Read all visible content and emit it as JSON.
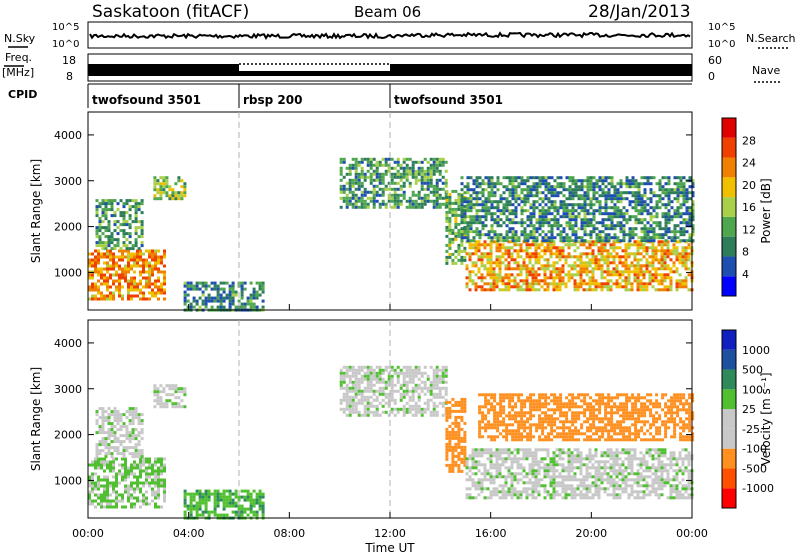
{
  "header": {
    "station": "Saskatoon (fitACF)",
    "beam": "Beam 06",
    "date": "28/Jan/2013"
  },
  "noise_panel": {
    "left_label": "N.Sky",
    "right_label": "N.Search",
    "left_ticks": [
      "10^5",
      "10^0"
    ],
    "right_ticks": [
      "10^5",
      "10^0"
    ]
  },
  "freq_panel": {
    "left_label_top": "Freq.",
    "left_label_bottom": "[MHz]",
    "left_ticks": [
      "18",
      "8"
    ],
    "right_label": "Nave",
    "right_ticks": [
      "60",
      "0"
    ]
  },
  "cpid": {
    "label": "CPID",
    "segments": [
      {
        "name": "twofsound 3501",
        "start_hour": 0,
        "end_hour": 6
      },
      {
        "name": "rbsp 200",
        "start_hour": 6,
        "end_hour": 12
      },
      {
        "name": "twofsound 3501",
        "start_hour": 12,
        "end_hour": 24
      }
    ]
  },
  "colors": {
    "power_scale": [
      "#0000ff",
      "#1e4fb0",
      "#2e7d5a",
      "#4ea64e",
      "#a8d04a",
      "#f0c000",
      "#f08000",
      "#f04000",
      "#e00000"
    ],
    "velocity_scale": [
      "#ff0000",
      "#ff5000",
      "#ff9020",
      "#c8c8c8",
      "#c8c8c8",
      "#50c030",
      "#2e8a5a",
      "#1e50a0",
      "#1020c0"
    ],
    "grid_line": "#b0b0b0"
  },
  "chart_data": [
    {
      "type": "heatmap",
      "name": "power",
      "xlabel": "Time UT",
      "ylabel": "Slant Range [km]",
      "x_ticks": [
        "00:00",
        "04:00",
        "08:00",
        "12:00",
        "16:00",
        "20:00",
        "00:00"
      ],
      "xlim_hours": [
        0,
        24
      ],
      "y_ticks": [
        1000,
        2000,
        3000,
        4000
      ],
      "ylim": [
        180,
        4500
      ],
      "colorbar_label": "Power [dB]",
      "colorbar_ticks": [
        "4",
        "8",
        "12",
        "16",
        "20",
        "24",
        "28"
      ],
      "colorbar_range": [
        0,
        30
      ],
      "regions": [
        {
          "t0": 0.0,
          "t1": 3.0,
          "r0": 450,
          "r1": 1500,
          "value": 22
        },
        {
          "t0": 0.3,
          "t1": 2.2,
          "r0": 1500,
          "r1": 2600,
          "value": 10
        },
        {
          "t0": 2.6,
          "t1": 3.8,
          "r0": 2600,
          "r1": 3100,
          "value": 14
        },
        {
          "t0": 3.8,
          "t1": 7.0,
          "r0": 200,
          "r1": 800,
          "value": 8
        },
        {
          "t0": 10.0,
          "t1": 14.2,
          "r0": 2400,
          "r1": 3500,
          "value": 10
        },
        {
          "t0": 14.2,
          "t1": 15.0,
          "r0": 1200,
          "r1": 2800,
          "value": 12
        },
        {
          "t0": 15.0,
          "t1": 24.0,
          "r0": 600,
          "r1": 1700,
          "value": 20
        },
        {
          "t0": 14.8,
          "t1": 24.0,
          "r0": 1700,
          "r1": 3100,
          "value": 8
        }
      ]
    },
    {
      "type": "heatmap",
      "name": "velocity",
      "xlabel": "Time UT",
      "ylabel": "Slant Range [km]",
      "x_ticks": [
        "00:00",
        "04:00",
        "08:00",
        "12:00",
        "16:00",
        "20:00",
        "00:00"
      ],
      "xlim_hours": [
        0,
        24
      ],
      "y_ticks": [
        1000,
        2000,
        3000,
        4000
      ],
      "ylim": [
        180,
        4500
      ],
      "colorbar_label": "Velocity [m s⁻¹]",
      "colorbar_ticks": [
        "1000",
        "500",
        "100",
        "25",
        "-25",
        "-100",
        "-500",
        "-1000"
      ],
      "regions": [
        {
          "t0": 0.0,
          "t1": 3.0,
          "r0": 450,
          "r1": 1500,
          "value": 30
        },
        {
          "t0": 0.3,
          "t1": 2.2,
          "r0": 1500,
          "r1": 2600,
          "value": 0
        },
        {
          "t0": 2.6,
          "t1": 3.8,
          "r0": 2600,
          "r1": 3100,
          "value": 0
        },
        {
          "t0": 3.8,
          "t1": 7.0,
          "r0": 200,
          "r1": 800,
          "value": 80
        },
        {
          "t0": 10.0,
          "t1": 14.2,
          "r0": 2400,
          "r1": 3500,
          "value": 0
        },
        {
          "t0": 14.2,
          "t1": 15.0,
          "r0": 1200,
          "r1": 2800,
          "value": -150
        },
        {
          "t0": 15.0,
          "t1": 24.0,
          "r0": 600,
          "r1": 1700,
          "value": 0
        },
        {
          "t0": 15.5,
          "t1": 24.0,
          "r0": 1900,
          "r1": 2900,
          "value": -200
        }
      ]
    }
  ]
}
